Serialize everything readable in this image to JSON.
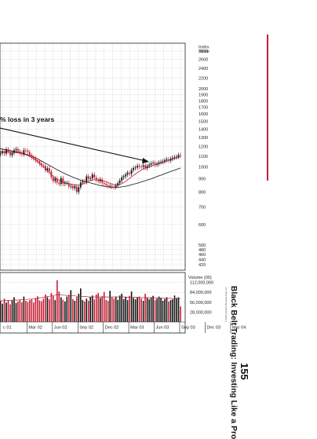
{
  "page": {
    "running_title": "Black Belt Trading: Investing Like a Pro",
    "page_number": "155",
    "accent_color": "#c51f35"
  },
  "chart_data": {
    "type": "candlestick",
    "annotation": "% loss in 3 years",
    "copyright": "© 2004 Investor's Business Daily, Inc.",
    "price_axis": {
      "label": [
        "Index",
        "Scale"
      ],
      "scale": "log",
      "ticks": [
        420,
        440,
        460,
        480,
        500,
        600,
        700,
        800,
        900,
        1000,
        1100,
        1200,
        1300,
        1400,
        1500,
        1600,
        1700,
        1800,
        1900,
        2000,
        2200,
        2400,
        2600,
        2800
      ],
      "ylim": [
        400,
        3000
      ]
    },
    "volume_axis": {
      "label": "Volume (00)",
      "ticks": [
        "112,000,000",
        "84,000,000",
        "56,000,000",
        "28,000,000"
      ],
      "values": [
        112000000,
        84000000,
        56000000,
        28000000
      ],
      "ylim": [
        0,
        140000000
      ]
    },
    "x_labels": [
      "c 01",
      "Mar 02",
      "Jun 02",
      "Sep 02",
      "Dec 02",
      "Mar 03",
      "Jun 03",
      "Sep 03",
      "Dec 03",
      "Mar 04"
    ],
    "weeks_per_label": 13,
    "price": [
      1118,
      1132,
      1150,
      1126,
      1170,
      1145,
      1110,
      1133,
      1160,
      1172,
      1150,
      1131,
      1120,
      1160,
      1155,
      1140,
      1110,
      1089,
      1078,
      1061,
      1052,
      1032,
      1012,
      1010,
      970,
      988,
      960,
      912,
      882,
      902,
      870,
      860,
      905,
      860,
      868,
      868,
      840,
      845,
      827,
      842,
      800,
      835,
      870,
      880,
      874,
      920,
      900,
      905,
      935,
      910,
      889,
      880,
      895,
      868,
      860,
      850,
      842,
      845,
      838,
      835,
      848,
      866,
      886,
      910,
      920,
      935,
      950,
      940,
      972,
      990,
      995,
      1010,
      1002,
      1000,
      1015,
      990,
      1008,
      1020,
      1032,
      1038,
      1020,
      1029,
      1040,
      1046,
      1050,
      1062,
      1070,
      1058,
      1075,
      1085,
      1090,
      1095,
      1112,
      1105
    ],
    "ma_short": [
      1140,
      1142,
      1143,
      1143,
      1144,
      1145,
      1142,
      1138,
      1136,
      1135,
      1133,
      1130,
      1126,
      1120,
      1114,
      1106,
      1098,
      1088,
      1076,
      1062,
      1048,
      1032,
      1016,
      1000,
      984,
      966,
      950,
      934,
      920,
      908,
      898,
      890,
      884,
      878,
      872,
      866,
      862,
      858,
      855,
      852,
      852,
      853,
      856,
      860,
      866,
      872,
      880,
      886,
      890,
      892,
      893,
      892,
      890,
      887,
      883,
      878,
      872,
      866,
      860,
      855,
      852,
      852,
      856,
      862,
      870,
      880,
      892,
      904,
      916,
      928,
      940,
      952,
      962,
      972,
      980,
      988,
      994,
      1000,
      1006,
      1012,
      1018,
      1024,
      1030,
      1036,
      1042,
      1048,
      1054,
      1060,
      1066,
      1072,
      1078,
      1084,
      1090,
      1096
    ],
    "ma_long": [
      1180,
      1176,
      1172,
      1168,
      1164,
      1160,
      1156,
      1152,
      1148,
      1144,
      1140,
      1136,
      1131,
      1126,
      1120,
      1114,
      1107,
      1100,
      1092,
      1083,
      1074,
      1064,
      1054,
      1044,
      1034,
      1024,
      1014,
      1004,
      994,
      985,
      976,
      967,
      958,
      950,
      942,
      934,
      927,
      920,
      913,
      907,
      901,
      895,
      890,
      885,
      880,
      876,
      872,
      868,
      864,
      860,
      856,
      852,
      848,
      845,
      842,
      840,
      838,
      836,
      834,
      834,
      834,
      835,
      836,
      838,
      840,
      843,
      846,
      850,
      854,
      858,
      862,
      866,
      870,
      875,
      880,
      885,
      890,
      895,
      900,
      906,
      912,
      918,
      924,
      930,
      936,
      942,
      948,
      954,
      960,
      966,
      972,
      978,
      984,
      990
    ],
    "volume_millions": [
      58,
      60,
      52,
      66,
      55,
      62,
      50,
      61,
      70,
      54,
      58,
      63,
      56,
      72,
      60,
      57,
      62,
      65,
      55,
      68,
      73,
      61,
      59,
      66,
      78,
      70,
      64,
      82,
      74,
      62,
      118,
      86,
      70,
      63,
      58,
      72,
      77,
      90,
      65,
      60,
      71,
      80,
      95,
      62,
      58,
      66,
      60,
      70,
      75,
      64,
      78,
      82,
      68,
      73,
      85,
      62,
      60,
      88,
      70,
      66,
      72,
      63,
      75,
      80,
      65,
      70,
      62,
      74,
      86,
      68,
      64,
      70,
      72,
      66,
      60,
      80,
      68,
      64,
      70,
      74,
      62,
      66,
      72,
      68,
      60,
      65,
      70,
      58,
      62,
      64,
      75,
      68,
      70,
      44
    ],
    "volume_ma_millions": [
      60,
      60,
      60,
      61,
      61,
      61,
      61,
      62,
      62,
      62,
      62,
      63,
      63,
      64,
      64,
      64,
      65,
      65,
      66,
      66,
      67,
      68,
      69,
      70,
      71,
      72,
      73,
      74,
      75,
      76,
      77,
      77,
      77,
      76,
      76,
      75,
      75,
      74,
      74,
      74,
      73,
      73,
      73,
      72,
      72,
      72,
      71,
      71,
      71,
      71,
      71,
      71,
      71,
      71,
      71,
      71,
      71,
      71,
      71,
      71,
      71,
      71,
      71,
      71,
      71,
      71,
      70,
      70,
      70,
      70,
      70,
      70,
      69,
      69,
      69,
      69,
      69,
      69,
      68,
      68,
      68,
      68,
      68,
      68,
      67,
      67,
      67,
      67,
      67,
      66,
      66,
      66,
      66,
      66
    ],
    "colors": {
      "up": "#111111",
      "down": "#c51f35",
      "ma_short": "#c51f35",
      "ma_long": "#111111",
      "grid": "#b9b9b9",
      "trend_arrow": "#111111"
    },
    "grid": true
  }
}
